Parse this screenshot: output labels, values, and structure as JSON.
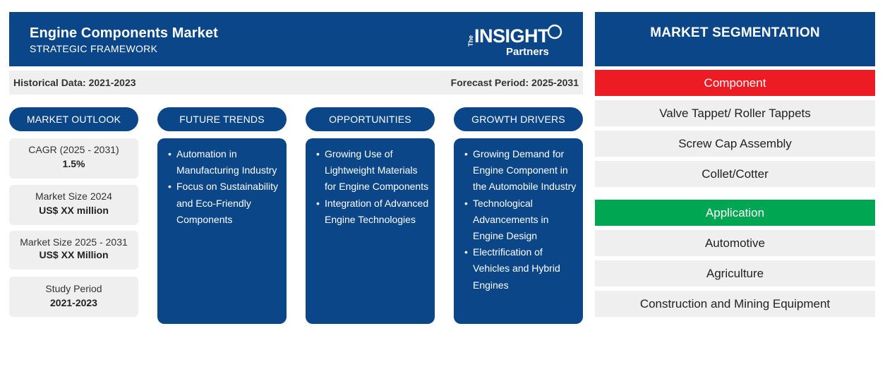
{
  "header": {
    "title": "Engine Components Market",
    "subtitle": "STRATEGIC FRAMEWORK",
    "logo": {
      "the": "The",
      "insight": "INSIGHT",
      "partners": "Partners"
    }
  },
  "periods": {
    "historical": "Historical Data: 2021-2023",
    "forecast": "Forecast Period: 2025-2031"
  },
  "pills": {
    "outlook": "MARKET OUTLOOK",
    "trends": "FUTURE TRENDS",
    "opportunities": "OPPORTUNITIES",
    "drivers": "GROWTH DRIVERS"
  },
  "outlook": [
    {
      "label": "CAGR (2025 - 2031)",
      "value": "1.5%"
    },
    {
      "label": "Market Size 2024",
      "value": "US$ XX million"
    },
    {
      "label": "Market Size 2025 - 2031",
      "value": "US$ XX Million"
    },
    {
      "label": "Study Period",
      "value": "2021-2023"
    }
  ],
  "trends": [
    "Automation in Manufacturing Industry",
    "Focus on Sustainability and Eco-Friendly Components"
  ],
  "opportunities": [
    "Growing Use of Lightweight Materials for Engine Components",
    "Integration of Advanced Engine Technologies"
  ],
  "drivers": [
    "Growing Demand for Engine Component in the Automobile Industry",
    "Technological Advancements in Engine Design",
    "Electrification of Vehicles and Hybrid Engines"
  ],
  "segmentation": {
    "title": "MARKET SEGMENTATION",
    "component": {
      "label": "Component",
      "color": "#ed1c24",
      "items": [
        "Valve Tappet/ Roller Tappets",
        "Screw Cap Assembly",
        "Collet/Cotter"
      ]
    },
    "application": {
      "label": "Application",
      "color": "#00a651",
      "items": [
        "Automotive",
        "Agriculture",
        "Construction and Mining Equipment"
      ]
    }
  },
  "colors": {
    "primary": "#0b4788",
    "panel": "#efefef"
  }
}
